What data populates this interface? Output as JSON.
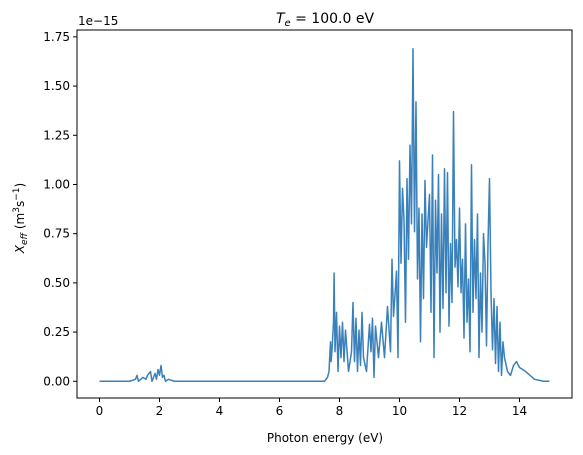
{
  "chart_data": {
    "type": "line",
    "title_prefix": "T",
    "title_sub": "e",
    "title_suffix": " = 100.0 eV",
    "xlabel": "Photon energy (eV)",
    "ylabel_main": "X",
    "ylabel_sub": "eff",
    "ylabel_units_pre": " (m",
    "ylabel_units_sup1": "3",
    "ylabel_units_mid": "s",
    "ylabel_units_sup2": "−1",
    "ylabel_units_post": ")",
    "offset_text": "1e−15",
    "xlim": [
      -0.75,
      15.75
    ],
    "ylim": [
      -0.085,
      1.785
    ],
    "xticks": [
      0,
      2,
      4,
      6,
      8,
      10,
      12,
      14
    ],
    "xtick_labels": [
      "0",
      "2",
      "4",
      "6",
      "8",
      "10",
      "12",
      "14"
    ],
    "yticks": [
      0.0,
      0.25,
      0.5,
      0.75,
      1.0,
      1.25,
      1.5,
      1.75
    ],
    "ytick_labels": [
      "0.00",
      "0.25",
      "0.50",
      "0.75",
      "1.00",
      "1.25",
      "1.50",
      "1.75"
    ],
    "grid": false,
    "series": [
      {
        "color": "#3a80ba",
        "x": [
          0.0,
          1.0,
          1.2,
          1.25,
          1.3,
          1.45,
          1.55,
          1.6,
          1.7,
          1.75,
          1.8,
          1.85,
          1.9,
          1.95,
          2.0,
          2.05,
          2.1,
          2.15,
          2.2,
          2.3,
          2.5,
          7.5,
          7.6,
          7.65,
          7.7,
          7.72,
          7.75,
          7.8,
          7.82,
          7.85,
          7.9,
          7.95,
          8.0,
          8.05,
          8.1,
          8.15,
          8.2,
          8.3,
          8.4,
          8.45,
          8.5,
          8.55,
          8.6,
          8.65,
          8.7,
          8.75,
          8.8,
          8.9,
          9.0,
          9.05,
          9.1,
          9.15,
          9.2,
          9.3,
          9.4,
          9.5,
          9.6,
          9.7,
          9.75,
          9.8,
          9.85,
          9.9,
          9.95,
          10.0,
          10.05,
          10.1,
          10.15,
          10.2,
          10.25,
          10.3,
          10.35,
          10.4,
          10.45,
          10.5,
          10.55,
          10.6,
          10.65,
          10.7,
          10.75,
          10.8,
          10.85,
          10.9,
          11.0,
          11.05,
          11.1,
          11.15,
          11.2,
          11.25,
          11.3,
          11.35,
          11.4,
          11.45,
          11.5,
          11.55,
          11.6,
          11.65,
          11.7,
          11.75,
          11.8,
          11.85,
          11.9,
          11.95,
          12.0,
          12.05,
          12.1,
          12.15,
          12.2,
          12.25,
          12.3,
          12.35,
          12.4,
          12.45,
          12.5,
          12.55,
          12.6,
          12.65,
          12.7,
          12.75,
          12.8,
          12.85,
          12.9,
          12.95,
          13.0,
          13.05,
          13.1,
          13.15,
          13.2,
          13.25,
          13.3,
          13.35,
          13.4,
          13.45,
          13.5,
          13.6,
          13.7,
          13.8,
          13.9,
          14.0,
          14.2,
          14.5,
          14.8,
          15.0
        ],
        "y": [
          0.0,
          0.0,
          0.01,
          0.03,
          0.0,
          0.02,
          0.01,
          0.03,
          0.05,
          0.0,
          0.02,
          0.04,
          0.01,
          0.06,
          0.03,
          0.08,
          0.02,
          0.03,
          0.0,
          0.01,
          0.0,
          0.0,
          0.02,
          0.05,
          0.2,
          0.1,
          0.16,
          0.3,
          0.55,
          0.15,
          0.35,
          0.05,
          0.28,
          0.12,
          0.3,
          0.1,
          0.26,
          0.05,
          0.15,
          0.4,
          0.1,
          0.32,
          0.05,
          0.26,
          0.08,
          0.35,
          0.12,
          0.05,
          0.29,
          0.15,
          0.32,
          0.02,
          0.28,
          0.12,
          0.3,
          0.12,
          0.38,
          0.15,
          0.62,
          0.33,
          0.44,
          0.56,
          0.12,
          1.12,
          0.6,
          0.98,
          0.82,
          0.3,
          1.03,
          0.62,
          1.2,
          0.8,
          1.69,
          0.76,
          1.42,
          0.52,
          0.88,
          0.2,
          0.85,
          0.42,
          1.02,
          0.68,
          0.95,
          0.35,
          1.15,
          0.12,
          0.92,
          0.55,
          1.05,
          0.25,
          0.85,
          0.37,
          1.08,
          0.45,
          1.06,
          0.28,
          0.7,
          0.4,
          1.37,
          0.58,
          0.72,
          0.48,
          0.88,
          0.45,
          0.62,
          0.22,
          0.8,
          0.3,
          0.52,
          0.15,
          1.1,
          0.35,
          0.72,
          0.42,
          0.85,
          0.12,
          0.55,
          0.25,
          0.75,
          0.6,
          0.18,
          0.7,
          1.03,
          0.45,
          0.16,
          0.42,
          0.09,
          0.38,
          0.05,
          0.3,
          0.03,
          0.2,
          0.12,
          0.05,
          0.03,
          0.08,
          0.1,
          0.07,
          0.05,
          0.01,
          0.0,
          0.0
        ]
      }
    ]
  }
}
